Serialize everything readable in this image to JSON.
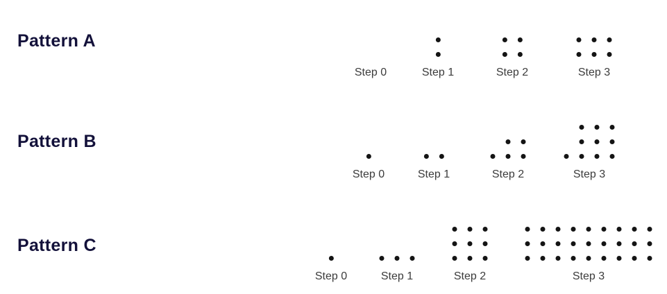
{
  "patterns": [
    {
      "name": "Pattern A",
      "steps": [
        {
          "label": "Step 0",
          "rows": []
        },
        {
          "label": "Step 1",
          "rows": [
            1,
            1
          ]
        },
        {
          "label": "Step 2",
          "rows": [
            2,
            2
          ]
        },
        {
          "label": "Step 3",
          "rows": [
            3,
            3
          ]
        }
      ]
    },
    {
      "name": "Pattern B",
      "steps": [
        {
          "label": "Step 0",
          "rows": [
            1
          ]
        },
        {
          "label": "Step 1",
          "rows": [
            2
          ]
        },
        {
          "label": "Step 2",
          "rows": [
            2,
            3
          ]
        },
        {
          "label": "Step 3",
          "rows": [
            3,
            3,
            4
          ]
        }
      ]
    },
    {
      "name": "Pattern C",
      "steps": [
        {
          "label": "Step 0",
          "rows": [
            1
          ]
        },
        {
          "label": "Step 1",
          "rows": [
            3
          ]
        },
        {
          "label": "Step 2",
          "rows": [
            3,
            3,
            3
          ]
        },
        {
          "label": "Step 3",
          "rows": [
            9,
            9,
            9
          ]
        }
      ]
    }
  ],
  "colors": {
    "background": "#ffffff",
    "pattern_label": "#13113a",
    "step_label": "#3b3b3b",
    "dot": "#141414"
  }
}
